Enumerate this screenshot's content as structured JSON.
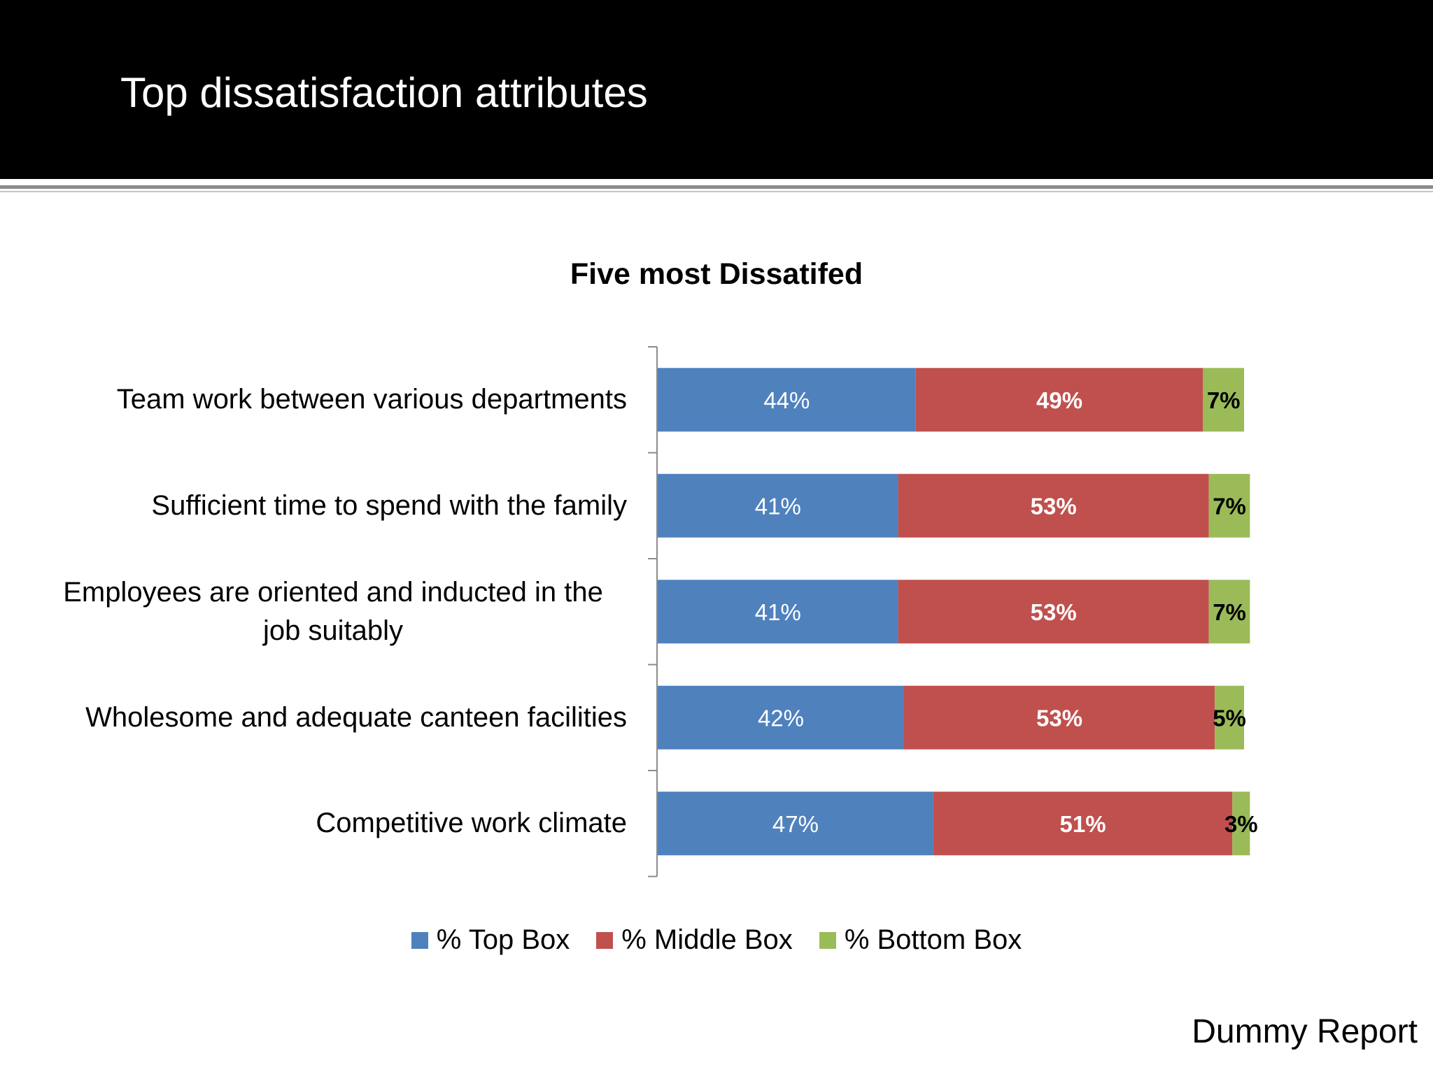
{
  "slide": {
    "title": "Top dissatisfaction attributes",
    "footer": "Dummy Report"
  },
  "colors": {
    "top_box": "#4f81bd",
    "middle_box": "#c0504d",
    "bottom_box": "#9bbb59",
    "header_bg": "#000000"
  },
  "chart_data": {
    "type": "bar",
    "orientation": "horizontal",
    "stacked": true,
    "title": "Five most Dissatifed",
    "categories": [
      "Team work between various departments",
      "Sufficient time to spend with the family",
      "Employees are oriented and inducted in the job suitably",
      "Wholesome and adequate canteen facilities",
      "Competitive work climate"
    ],
    "category_label_lines": [
      [
        "Team work between various departments"
      ],
      [
        "Sufficient time to spend with the family"
      ],
      [
        "Employees are oriented and inducted in the",
        "job suitably"
      ],
      [
        "Wholesome and adequate canteen facilities"
      ],
      [
        "Competitive work climate"
      ]
    ],
    "series": [
      {
        "name": "% Top Box",
        "values": [
          44,
          41,
          41,
          42,
          47
        ],
        "labels": [
          "44%",
          "41%",
          "41%",
          "42%",
          "47%"
        ]
      },
      {
        "name": "% Middle Box",
        "values": [
          49,
          53,
          53,
          53,
          51
        ],
        "labels": [
          "49%",
          "53%",
          "53%",
          "53%",
          "51%"
        ]
      },
      {
        "name": "% Bottom Box",
        "values": [
          7,
          7,
          7,
          5,
          3
        ],
        "labels": [
          "7%",
          "7%",
          "7%",
          "5%",
          "3%"
        ]
      }
    ],
    "xlim": [
      0,
      100
    ],
    "grid": false,
    "legend_position": "bottom"
  }
}
